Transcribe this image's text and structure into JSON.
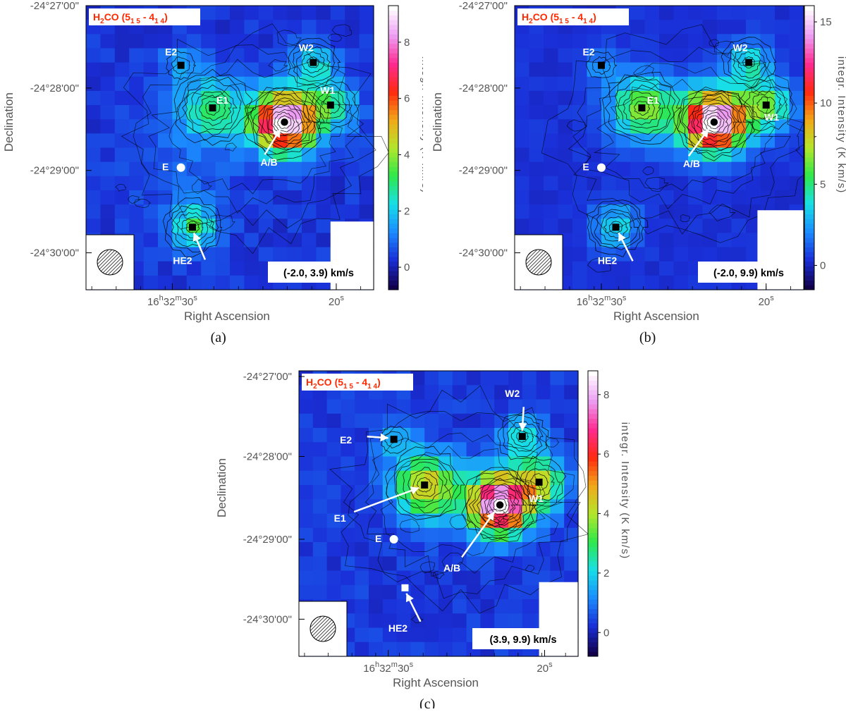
{
  "chart_data": [
    {
      "type": "heatmap",
      "caption": "(a)",
      "title": "H2CO (5",
      "title_parts": [
        "H",
        "2",
        "CO (5",
        "1 5",
        " - 4",
        "1 4",
        ")"
      ],
      "velocity_range": "(-2.0, 3.9) km/s",
      "xlabel": "Right Ascension",
      "ylabel": "Declination",
      "colorbar_label": "integr. Intensity (K km/s)",
      "colorbar_ticks": [
        "0",
        "2",
        "4",
        "6",
        "8"
      ],
      "colorbar_range": [
        -0.8,
        9.3
      ],
      "yticks": [
        "-24°27'00\"",
        "-24°28'00\"",
        "-24°29'00\"",
        "-24°30'00\""
      ],
      "xticks": [
        {
          "h": "16",
          "m": "32",
          "s": "30"
        },
        {
          "s": "20"
        }
      ],
      "sources": [
        {
          "name": "E2",
          "marker": "square"
        },
        {
          "name": "E1",
          "marker": "square"
        },
        {
          "name": "W2",
          "marker": "square"
        },
        {
          "name": "W1",
          "marker": "square"
        },
        {
          "name": "A/B",
          "marker": "circle"
        },
        {
          "name": "E",
          "marker": "circle"
        },
        {
          "name": "HE2",
          "marker": "square"
        }
      ],
      "peaks": [
        {
          "source": "A/B",
          "value": 9.0
        },
        {
          "source": "E1",
          "value": 2.4
        },
        {
          "source": "HE2",
          "value": 2.8
        },
        {
          "source": "W2",
          "value": 2.2
        },
        {
          "source": "W1",
          "value": 2.5
        },
        {
          "source": "E2",
          "value": 1.2
        }
      ]
    },
    {
      "type": "heatmap",
      "caption": "(b)",
      "title": "H2CO (5",
      "title_parts": [
        "H",
        "2",
        "CO (5",
        "1 5",
        " - 4",
        "1 4",
        ")"
      ],
      "velocity_range": "(-2.0, 9.9) km/s",
      "xlabel": "Right Ascension",
      "ylabel": "Declination",
      "colorbar_label": "integr. Intensity (K km/s)",
      "colorbar_ticks": [
        "0",
        "5",
        "10",
        "15"
      ],
      "colorbar_range": [
        -1.5,
        16
      ],
      "yticks": [
        "-24°27'00\"",
        "-24°28'00\"",
        "-24°29'00\"",
        "-24°30'00\""
      ],
      "xticks": [
        {
          "h": "16",
          "m": "32",
          "s": "30"
        },
        {
          "s": "20"
        }
      ],
      "sources": [
        {
          "name": "E2",
          "marker": "square"
        },
        {
          "name": "E1",
          "marker": "square"
        },
        {
          "name": "W2",
          "marker": "square"
        },
        {
          "name": "W1",
          "marker": "square"
        },
        {
          "name": "A/B",
          "marker": "circle"
        },
        {
          "name": "E",
          "marker": "circle"
        },
        {
          "name": "HE2",
          "marker": "square"
        }
      ],
      "peaks": [
        {
          "source": "A/B",
          "value": 15.5
        },
        {
          "source": "E1",
          "value": 6.0
        },
        {
          "source": "HE2",
          "value": 3.5
        },
        {
          "source": "W2",
          "value": 4.0
        },
        {
          "source": "W1",
          "value": 5.5
        },
        {
          "source": "E2",
          "value": 2.0
        }
      ]
    },
    {
      "type": "heatmap",
      "caption": "(c)",
      "title": "H2CO (5",
      "title_parts": [
        "H",
        "2",
        "CO (5",
        "1 5",
        " - 4",
        "1 4",
        ")"
      ],
      "velocity_range": "(3.9, 9.9) km/s",
      "xlabel": "Right Ascension",
      "ylabel": "Declination",
      "colorbar_label": "integr. Intensity (K km/s)",
      "colorbar_ticks": [
        "0",
        "2",
        "4",
        "6",
        "8"
      ],
      "colorbar_range": [
        -0.8,
        8.8
      ],
      "yticks": [
        "-24°27'00\"",
        "-24°28'00\"",
        "-24°29'00\"",
        "-24°30'00\""
      ],
      "xticks": [
        {
          "h": "16",
          "m": "32",
          "s": "30"
        },
        {
          "s": "20"
        }
      ],
      "sources": [
        {
          "name": "E2",
          "marker": "square"
        },
        {
          "name": "E1",
          "marker": "square"
        },
        {
          "name": "W2",
          "marker": "square"
        },
        {
          "name": "W1",
          "marker": "square"
        },
        {
          "name": "A/B",
          "marker": "circle"
        },
        {
          "name": "E",
          "marker": "circle"
        },
        {
          "name": "HE2",
          "marker": "square"
        }
      ],
      "peaks": [
        {
          "source": "A/B",
          "value": 8.0
        },
        {
          "source": "E1",
          "value": 4.0
        },
        {
          "source": "HE2",
          "value": 0.0
        },
        {
          "source": "W2",
          "value": 2.0
        },
        {
          "source": "W1",
          "value": 3.5
        },
        {
          "source": "E2",
          "value": 1.5
        }
      ]
    }
  ],
  "colors": {
    "colormap": [
      "#12004a",
      "#1a2fd8",
      "#1b8cff",
      "#18e0e6",
      "#2ee84a",
      "#b4e62b",
      "#f2a818",
      "#ff2a10",
      "#ff2a90",
      "#ec9cf2",
      "#ffffff"
    ],
    "marker": "#000000",
    "title": "#ff2a00",
    "contour": "#000000"
  }
}
